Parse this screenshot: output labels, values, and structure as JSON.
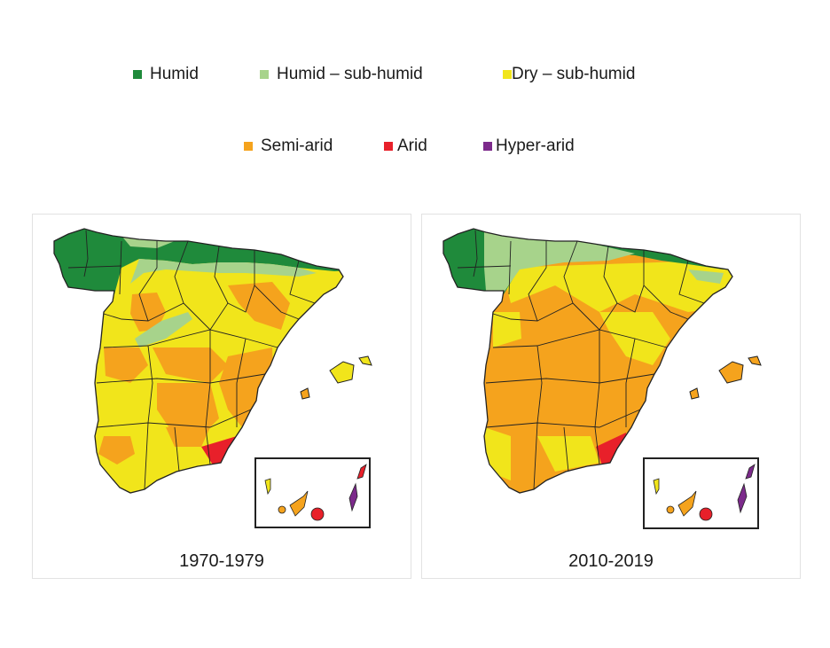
{
  "legend": {
    "items": [
      {
        "label": "Humid",
        "color": "#1f8a3b"
      },
      {
        "label": "Humid – sub-humid",
        "color": "#a7d38b"
      },
      {
        "label": "Dry – sub-humid",
        "color": "#f1e51b"
      },
      {
        "label": "Semi-arid",
        "color": "#f5a31d"
      },
      {
        "label": "Arid",
        "color": "#e8202a"
      },
      {
        "label": "Hyper-arid",
        "color": "#7c2a8b"
      }
    ]
  },
  "maps": [
    {
      "period": "1970-1979",
      "dominant_zone": "Dry – sub-humid"
    },
    {
      "period": "2010-2019",
      "dominant_zone": "Semi-arid"
    }
  ],
  "colors": {
    "outline": "#222222",
    "panel_border": "#e2e2e2"
  }
}
